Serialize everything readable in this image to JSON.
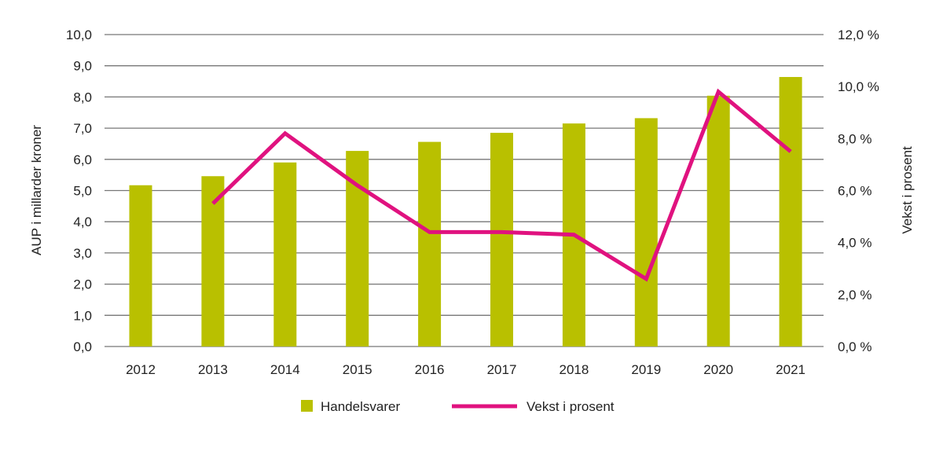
{
  "chart_data": {
    "type": "bar+line",
    "categories": [
      "2012",
      "2013",
      "2014",
      "2015",
      "2016",
      "2017",
      "2018",
      "2019",
      "2020",
      "2021"
    ],
    "series": [
      {
        "name": "Handelsvarer",
        "type": "bar",
        "axis": "left",
        "color": "#b9c000",
        "values": [
          5.17,
          5.46,
          5.9,
          6.27,
          6.56,
          6.85,
          7.15,
          7.32,
          8.04,
          8.64
        ]
      },
      {
        "name": "Vekst i prosent",
        "type": "line",
        "axis": "right",
        "color": "#e0127f",
        "values": [
          null,
          5.5,
          8.2,
          6.2,
          4.4,
          4.4,
          4.3,
          2.6,
          9.8,
          7.5
        ]
      }
    ],
    "ylabel": "AUP i millarder kroner",
    "ylabel_right": "Vekst i prosent",
    "ylim": [
      0,
      10
    ],
    "ylim_right": [
      0,
      12
    ],
    "yticks": [
      "0,0",
      "1,0",
      "2,0",
      "3,0",
      "4,0",
      "5,0",
      "6,0",
      "7,0",
      "8,0",
      "9,0",
      "10,0"
    ],
    "yticks_right": [
      "0,0 %",
      "2,0 %",
      "4,0 %",
      "6,0 %",
      "8,0 %",
      "10,0 %",
      "12,0 %"
    ],
    "grid": true,
    "legend": "bottom"
  }
}
